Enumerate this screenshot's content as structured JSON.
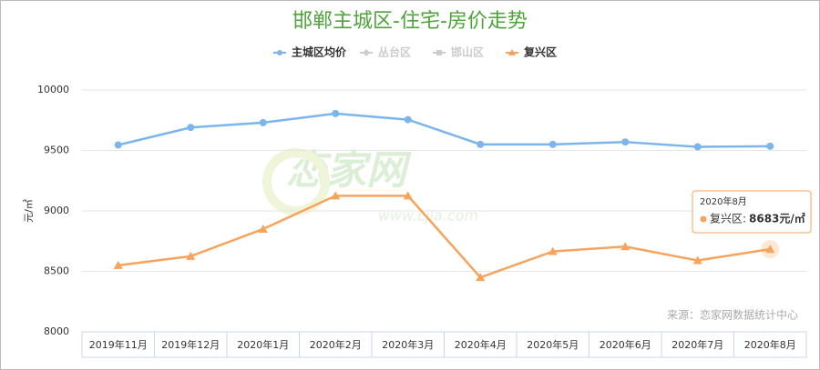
{
  "chart_data": {
    "type": "line",
    "title": "邯郸主城区-住宅-房价走势",
    "y_label": "元/㎡",
    "categories": [
      "2019年11月",
      "2019年12月",
      "2020年1月",
      "2020年2月",
      "2020年3月",
      "2020年4月",
      "2020年5月",
      "2020年6月",
      "2020年7月",
      "2020年8月"
    ],
    "series": [
      {
        "name": "主城区均价",
        "color": "#7cb5ec",
        "marker": "circle",
        "visible": true,
        "values": [
          9545,
          9690,
          9730,
          9805,
          9755,
          9550,
          9550,
          9570,
          9530,
          9535
        ]
      },
      {
        "name": "丛台区",
        "color": "#cccccc",
        "marker": "diamond",
        "visible": false,
        "values": [
          null,
          null,
          null,
          null,
          null,
          null,
          null,
          null,
          null,
          null
        ]
      },
      {
        "name": "邯山区",
        "color": "#cccccc",
        "marker": "square",
        "visible": false,
        "values": [
          null,
          null,
          null,
          null,
          null,
          null,
          null,
          null,
          null,
          null
        ]
      },
      {
        "name": "复兴区",
        "color": "#f7a35c",
        "marker": "triangle",
        "visible": true,
        "values": [
          8550,
          8625,
          8850,
          9125,
          9125,
          8450,
          8665,
          8705,
          8590,
          8683
        ],
        "value_labels": [
          null,
          null,
          null,
          null,
          null,
          null,
          null,
          null,
          null,
          "8683元/㎡"
        ]
      }
    ],
    "ylim": [
      8000,
      10000
    ],
    "yticks": [
      8000,
      8500,
      9000,
      9500,
      10000
    ],
    "grid": true,
    "legend": "top",
    "tooltip": {
      "title": "2020年8月",
      "label": "复兴区:"
    },
    "watermark": {
      "logo": "恋家网",
      "url": "www.Ljia.com"
    },
    "source": "来源：恋家网数据统计中心"
  }
}
